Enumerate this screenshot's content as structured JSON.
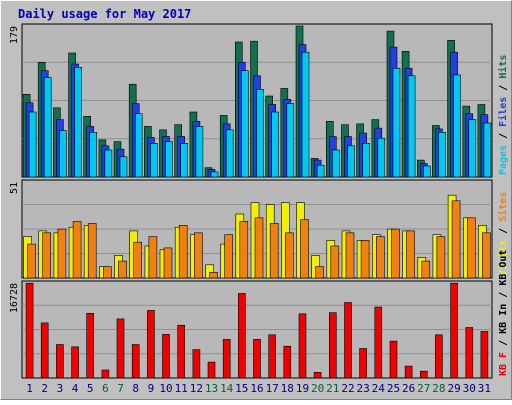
{
  "chart_data": {
    "type": "bar",
    "title": "Daily usage for May 2017",
    "categories": [
      "1",
      "2",
      "3",
      "4",
      "5",
      "6",
      "7",
      "8",
      "9",
      "10",
      "11",
      "12",
      "13",
      "14",
      "15",
      "16",
      "17",
      "18",
      "19",
      "20",
      "21",
      "22",
      "23",
      "24",
      "25",
      "26",
      "27",
      "28",
      "29",
      "30",
      "31"
    ],
    "weekend_days": [
      "6",
      "7",
      "13",
      "14",
      "20",
      "21",
      "27",
      "28"
    ],
    "panels": [
      {
        "name": "top",
        "ylim": [
          0,
          179
        ],
        "scale_label": "179",
        "legend": [
          "Pages",
          "/",
          "Files",
          "/",
          "Hits"
        ],
        "series": [
          {
            "name": "Hits",
            "color": "#107050",
            "values": [
              98,
              136,
              82,
              147,
              72,
              44,
              42,
              110,
              60,
              56,
              62,
              77,
              11,
              73,
              160,
              161,
              96,
              105,
              179,
              22,
              66,
              62,
              63,
              68,
              173,
              149,
              20,
              61,
              162,
              84,
              86
            ]
          },
          {
            "name": "Files",
            "color": "#2040e0",
            "values": [
              88,
              126,
              68,
              134,
              60,
              37,
              33,
              87,
              47,
              48,
              48,
              66,
              9,
              63,
              136,
              120,
              86,
              92,
              157,
              20,
              48,
              48,
              52,
              58,
              154,
              129,
              16,
              57,
              148,
              75,
              74
            ]
          },
          {
            "name": "Pages",
            "color": "#00c8f0",
            "values": [
              77,
              118,
              55,
              130,
              53,
              32,
              24,
              75,
              40,
              42,
              40,
              60,
              6,
              56,
              126,
              104,
              77,
              87,
              148,
              14,
              32,
              37,
              40,
              46,
              129,
              120,
              13,
              53,
              121,
              68,
              64
            ]
          }
        ]
      },
      {
        "name": "middle",
        "ylim": [
          0,
          51
        ],
        "scale_label": "51",
        "legend": [
          "Visits",
          "/",
          "Sites"
        ],
        "series": [
          {
            "name": "Visits",
            "color": "#f0f000",
            "values": [
              22,
              25,
              24,
              27,
              28,
              6,
              12,
              25,
              17,
              15,
              27,
              23,
              7,
              18,
              34,
              40,
              39,
              40,
              40,
              12,
              20,
              25,
              20,
              23,
              26,
              25,
              11,
              23,
              44,
              32,
              28
            ]
          },
          {
            "name": "Sites",
            "color": "#f08010",
            "values": [
              18,
              24,
              26,
              30,
              29,
              6,
              9,
              19,
              22,
              16,
              28,
              24,
              3,
              23,
              30,
              32,
              29,
              24,
              31,
              6,
              17,
              24,
              20,
              22,
              26,
              25,
              9,
              22,
              41,
              32,
              24
            ]
          }
        ]
      },
      {
        "name": "bottom",
        "ylim": [
          0,
          16728
        ],
        "scale_label": "16728",
        "legend": [
          "KB F",
          "/",
          "KB In",
          "/",
          "KB Out"
        ],
        "series": [
          {
            "name": "KB F",
            "color": "#f00000",
            "values": [
              16700,
              9700,
              5900,
              5500,
              11400,
              1400,
              10400,
              5900,
              11900,
              7700,
              9300,
              5000,
              2800,
              6800,
              14900,
              6800,
              7600,
              5600,
              11300,
              1000,
              11500,
              13300,
              5200,
              12500,
              6500,
              2100,
              1200,
              7600,
              16700,
              8900,
              8200
            ]
          }
        ]
      }
    ],
    "grid": true
  },
  "colors": {
    "outer_bg": "#c0c0c0",
    "plot_bg": "#b8b8b8",
    "title": "#0000c0",
    "weekday_label": "#000080",
    "weekend_label": "#006040",
    "slash": "#000000"
  }
}
